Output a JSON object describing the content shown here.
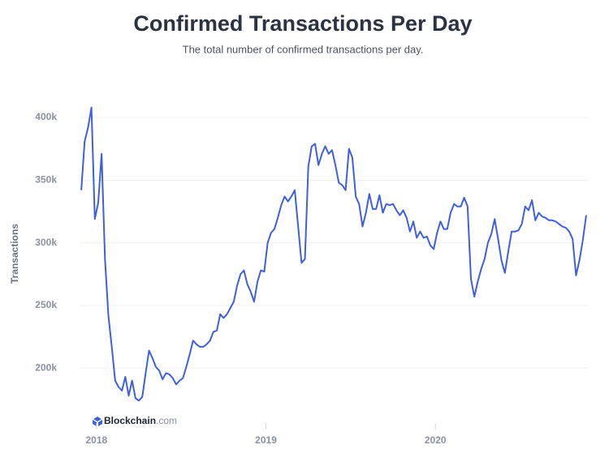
{
  "chart_data": {
    "type": "line",
    "title": "Confirmed Transactions Per Day",
    "subtitle": "The total number of confirmed transactions per day.",
    "y_label": "Transactions",
    "logo": {
      "brand": "Blockchain",
      "suffix": ".com"
    },
    "grid": true,
    "xlim": [
      2017.9,
      2020.9
    ],
    "xticks": [
      2018,
      2019,
      2020
    ],
    "ylim": [
      160000,
      416000
    ],
    "yticks": [
      {
        "value": 200000,
        "label": "200k"
      },
      {
        "value": 250000,
        "label": "250k"
      },
      {
        "value": 300000,
        "label": "300k"
      },
      {
        "value": 350000,
        "label": "350k"
      },
      {
        "value": 400000,
        "label": "400k"
      }
    ],
    "x": [
      2017.91,
      2017.93,
      2017.95,
      2017.97,
      2017.99,
      2018.01,
      2018.03,
      2018.05,
      2018.07,
      2018.09,
      2018.11,
      2018.13,
      2018.15,
      2018.17,
      2018.19,
      2018.21,
      2018.23,
      2018.25,
      2018.27,
      2018.29,
      2018.31,
      2018.33,
      2018.35,
      2018.37,
      2018.39,
      2018.41,
      2018.43,
      2018.45,
      2018.47,
      2018.49,
      2018.51,
      2018.53,
      2018.55,
      2018.57,
      2018.59,
      2018.61,
      2018.63,
      2018.65,
      2018.67,
      2018.69,
      2018.71,
      2018.73,
      2018.75,
      2018.77,
      2018.79,
      2018.81,
      2018.83,
      2018.85,
      2018.87,
      2018.89,
      2018.91,
      2018.93,
      2018.95,
      2018.97,
      2018.99,
      2019.01,
      2019.03,
      2019.05,
      2019.07,
      2019.09,
      2019.11,
      2019.13,
      2019.15,
      2019.17,
      2019.19,
      2019.21,
      2019.23,
      2019.25,
      2019.27,
      2019.29,
      2019.31,
      2019.33,
      2019.35,
      2019.37,
      2019.39,
      2019.41,
      2019.43,
      2019.45,
      2019.47,
      2019.49,
      2019.51,
      2019.53,
      2019.55,
      2019.57,
      2019.59,
      2019.61,
      2019.63,
      2019.65,
      2019.67,
      2019.69,
      2019.71,
      2019.73,
      2019.75,
      2019.77,
      2019.79,
      2019.81,
      2019.83,
      2019.85,
      2019.87,
      2019.89,
      2019.91,
      2019.93,
      2019.95,
      2019.97,
      2019.99,
      2020.01,
      2020.03,
      2020.05,
      2020.07,
      2020.09,
      2020.11,
      2020.13,
      2020.15,
      2020.17,
      2020.19,
      2020.21,
      2020.23,
      2020.25,
      2020.27,
      2020.29,
      2020.31,
      2020.33,
      2020.35,
      2020.37,
      2020.39,
      2020.41,
      2020.43,
      2020.45,
      2020.47,
      2020.49,
      2020.51,
      2020.53,
      2020.55,
      2020.57,
      2020.59,
      2020.61,
      2020.63,
      2020.65,
      2020.67,
      2020.69,
      2020.71,
      2020.73,
      2020.75,
      2020.77,
      2020.79,
      2020.81,
      2020.83,
      2020.85,
      2020.87,
      2020.89
    ],
    "series": [
      {
        "name": "Transactions",
        "color": "#3f5fe0",
        "values": [
          342000,
          381000,
          392000,
          408000,
          319000,
          332000,
          371000,
          287000,
          242000,
          217000,
          190000,
          185000,
          182000,
          193000,
          178000,
          190000,
          176000,
          174000,
          177000,
          196000,
          214000,
          208000,
          201000,
          198000,
          191000,
          196000,
          195000,
          192000,
          187000,
          190000,
          192000,
          201000,
          211000,
          222000,
          219000,
          217000,
          217000,
          219000,
          222000,
          229000,
          230000,
          243000,
          240000,
          243000,
          248000,
          253000,
          266000,
          275000,
          278000,
          267000,
          261000,
          253000,
          269000,
          278000,
          277000,
          300000,
          308000,
          311000,
          320000,
          330000,
          337000,
          333000,
          337000,
          342000,
          313000,
          284000,
          287000,
          361000,
          377000,
          379000,
          362000,
          371000,
          377000,
          371000,
          374000,
          362000,
          348000,
          346000,
          342000,
          375000,
          368000,
          337000,
          331000,
          313000,
          324000,
          339000,
          327000,
          327000,
          338000,
          324000,
          331000,
          330000,
          331000,
          326000,
          322000,
          326000,
          320000,
          309000,
          317000,
          304000,
          309000,
          304000,
          305000,
          298000,
          295000,
          308000,
          317000,
          311000,
          311000,
          324000,
          331000,
          329000,
          329000,
          336000,
          329000,
          271000,
          257000,
          269000,
          279000,
          287000,
          300000,
          307000,
          319000,
          303000,
          286000,
          276000,
          293000,
          309000,
          309000,
          310000,
          315000,
          329000,
          326000,
          334000,
          318000,
          324000,
          321000,
          320000,
          318000,
          318000,
          317000,
          315000,
          313000,
          312000,
          309000,
          303000,
          274000,
          286000,
          302000,
          322000
        ]
      }
    ]
  }
}
